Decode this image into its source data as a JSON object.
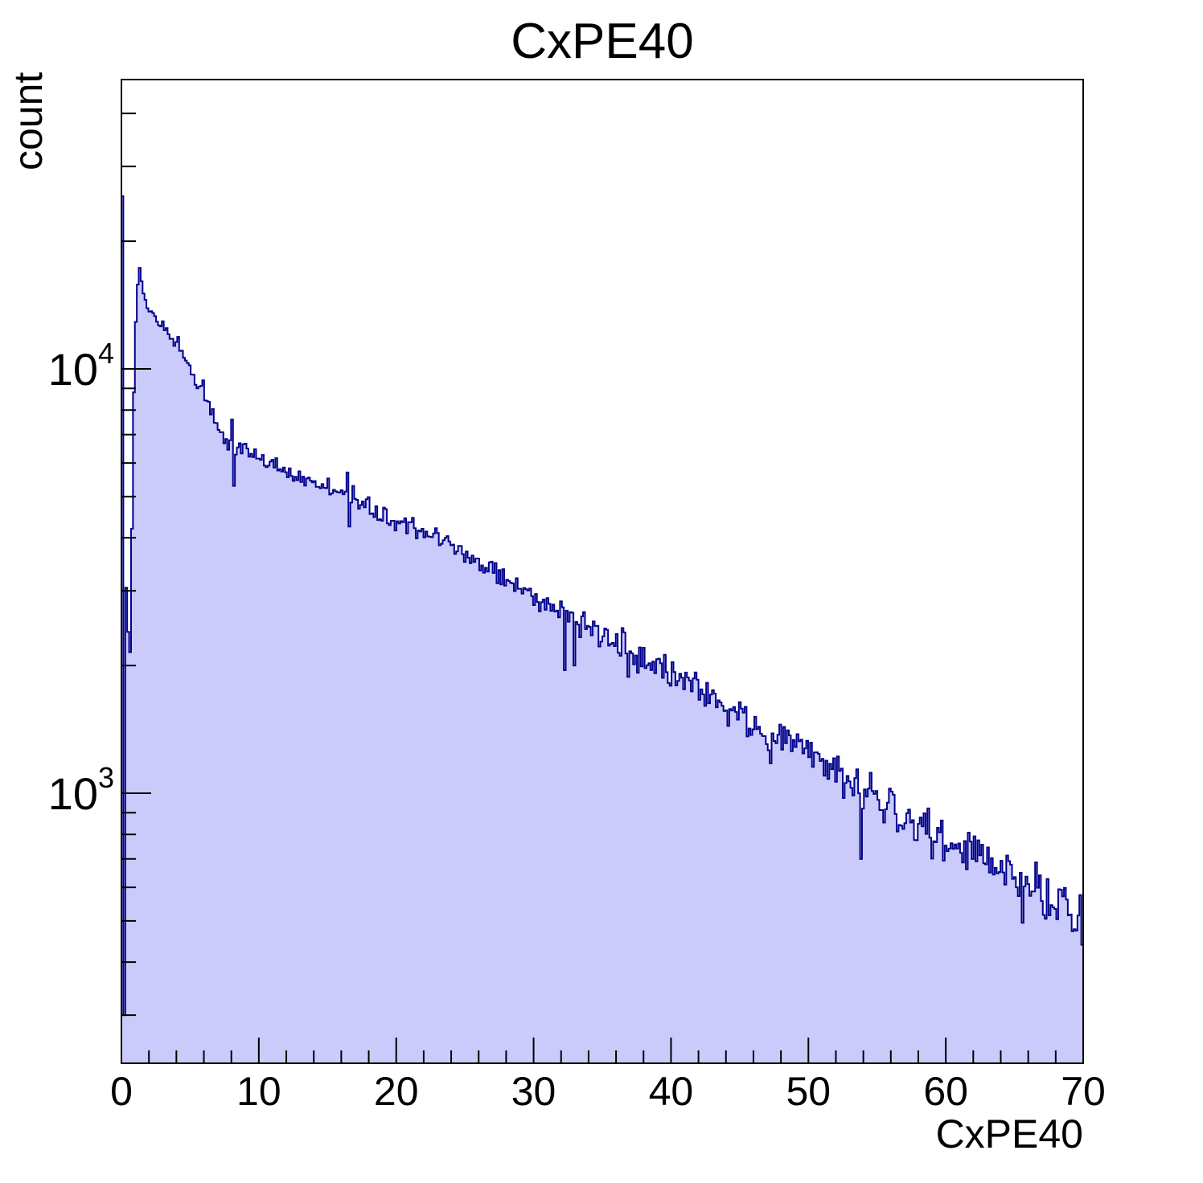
{
  "title": "CxPE40",
  "axes": {
    "x_title": "CxPE40",
    "y_title": "count",
    "x_tick_labels": [
      "0",
      "10",
      "20",
      "30",
      "40",
      "50",
      "60",
      "70"
    ],
    "y_tick_labels": [
      {
        "base": "10",
        "exp": "3"
      },
      {
        "base": "10",
        "exp": "4"
      }
    ]
  },
  "chart_data": {
    "type": "bar",
    "subtype": "histogram",
    "title": "CxPE40",
    "xlabel": "CxPE40",
    "ylabel": "count",
    "xlim": [
      0,
      70
    ],
    "ylim": [
      231,
      47700
    ],
    "yscale": "log",
    "grid": false,
    "legend": false,
    "bins": 500,
    "bin_width": 0.14,
    "x_major_ticks": [
      0,
      10,
      20,
      30,
      40,
      50,
      60,
      70
    ],
    "x_minor_tick_step": 2,
    "y_major_ticks": [
      1000,
      10000
    ],
    "head_bins": [
      25500,
      300,
      3050,
      2400,
      2150,
      4200,
      8800,
      12900,
      15800,
      17300
    ],
    "envelope": [
      [
        1.45,
        16200
      ],
      [
        1.55,
        15400
      ],
      [
        1.65,
        15000
      ],
      [
        1.8,
        14500
      ],
      [
        2.0,
        13800
      ],
      [
        2.2,
        13300
      ],
      [
        2.4,
        13400
      ],
      [
        2.6,
        12900
      ],
      [
        2.8,
        12700
      ],
      [
        3.0,
        12800
      ],
      [
        3.3,
        12300
      ],
      [
        3.6,
        11800
      ],
      [
        3.9,
        11400
      ],
      [
        4.2,
        11300
      ],
      [
        4.5,
        11000
      ],
      [
        4.8,
        10400
      ],
      [
        5.0,
        10000
      ],
      [
        5.3,
        9500
      ],
      [
        5.6,
        9100
      ],
      [
        5.9,
        8800
      ],
      [
        6.2,
        8400
      ],
      [
        6.5,
        8000
      ],
      [
        6.8,
        7600
      ],
      [
        7.1,
        7200
      ],
      [
        7.4,
        6950
      ],
      [
        7.7,
        6800
      ],
      [
        8.0,
        6650
      ],
      [
        8.5,
        6500
      ],
      [
        9.0,
        6400
      ],
      [
        9.5,
        6300
      ],
      [
        10,
        6200
      ],
      [
        11,
        6000
      ],
      [
        12,
        5800
      ],
      [
        13,
        5650
      ],
      [
        14,
        5450
      ],
      [
        15,
        5300
      ],
      [
        16,
        5100
      ],
      [
        17,
        4900
      ],
      [
        18,
        4700
      ],
      [
        19,
        4550
      ],
      [
        20,
        4400
      ],
      [
        21,
        4250
      ],
      [
        22,
        4100
      ],
      [
        23,
        3950
      ],
      [
        24,
        3800
      ],
      [
        25,
        3650
      ],
      [
        26,
        3500
      ],
      [
        27,
        3350
      ],
      [
        28,
        3220
      ],
      [
        29,
        3080
      ],
      [
        30,
        2950
      ],
      [
        31,
        2820
      ],
      [
        32,
        2700
      ],
      [
        33,
        2580
      ],
      [
        34,
        2470
      ],
      [
        35,
        2360
      ],
      [
        36,
        2260
      ],
      [
        37,
        2160
      ],
      [
        38,
        2070
      ],
      [
        39,
        1980
      ],
      [
        40,
        1890
      ],
      [
        41,
        1810
      ],
      [
        42,
        1730
      ],
      [
        43,
        1660
      ],
      [
        44,
        1580
      ],
      [
        45,
        1510
      ],
      [
        46,
        1450
      ],
      [
        47,
        1380
      ],
      [
        48,
        1320
      ],
      [
        49,
        1270
      ],
      [
        50,
        1210
      ],
      [
        51,
        1160
      ],
      [
        52,
        1110
      ],
      [
        53,
        1060
      ],
      [
        54,
        1010
      ],
      [
        55,
        970
      ],
      [
        56,
        930
      ],
      [
        57,
        890
      ],
      [
        58,
        850
      ],
      [
        59,
        815
      ],
      [
        60,
        780
      ],
      [
        61,
        745
      ],
      [
        62,
        715
      ],
      [
        63,
        685
      ],
      [
        64,
        655
      ],
      [
        65,
        625
      ],
      [
        66,
        600
      ],
      [
        67,
        575
      ],
      [
        68,
        550
      ],
      [
        69,
        525
      ],
      [
        70,
        505
      ]
    ],
    "outlier_bins": [
      [
        4.15,
        11900
      ],
      [
        5.95,
        9400
      ],
      [
        8.12,
        7600
      ],
      [
        8.26,
        5300
      ],
      [
        16.45,
        5700
      ],
      [
        16.59,
        4250
      ],
      [
        16.8,
        5300
      ],
      [
        32.3,
        1950
      ],
      [
        33.0,
        2000
      ],
      [
        34.6,
        2480
      ],
      [
        36.5,
        2450
      ],
      [
        36.9,
        1880
      ],
      [
        53.8,
        700
      ],
      [
        65.6,
        495
      ],
      [
        66.9,
        640
      ]
    ],
    "colors": {
      "fill": "#cbcbfb",
      "line": "#00008b",
      "frame": "#000000",
      "text": "#000000",
      "background": "#ffffff"
    }
  }
}
